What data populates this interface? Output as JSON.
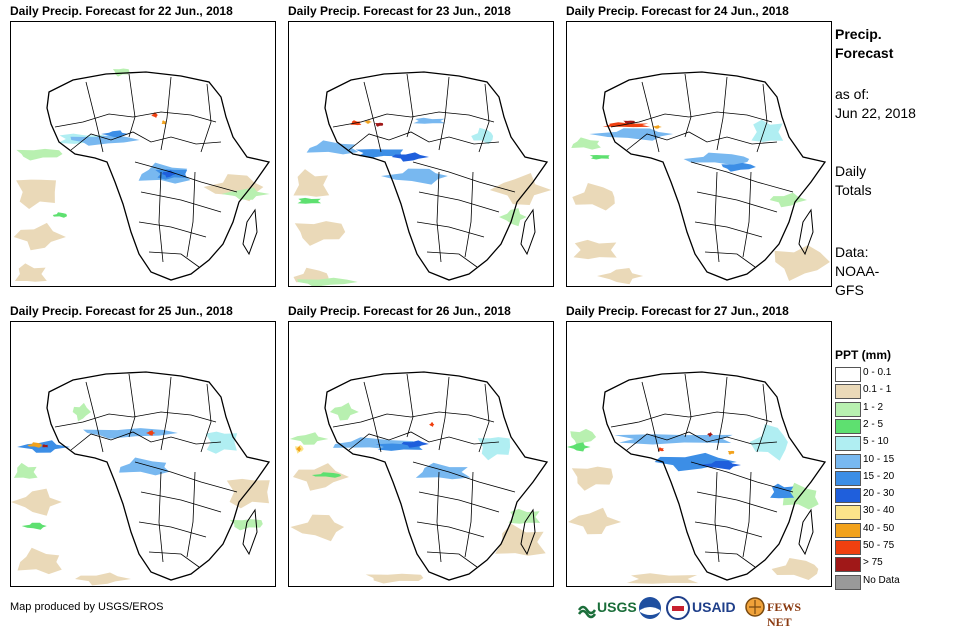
{
  "panels": [
    {
      "title": "Daily Precip. Forecast for 22 Jun., 2018"
    },
    {
      "title": "Daily Precip. Forecast for 23 Jun., 2018"
    },
    {
      "title": "Daily Precip. Forecast for 24 Jun., 2018"
    },
    {
      "title": "Daily Precip. Forecast for 25 Jun., 2018"
    },
    {
      "title": "Daily Precip. Forecast for 26 Jun., 2018"
    },
    {
      "title": "Daily Precip. Forecast for 27 Jun., 2018"
    }
  ],
  "sidebar": {
    "heading_line1": "Precip.",
    "heading_line2": "Forecast",
    "asof_label": "as of:",
    "asof_date": "Jun 22, 2018",
    "totals_line1": "Daily",
    "totals_line2": "Totals",
    "source_line1": "Data:",
    "source_line2": "NOAA-",
    "source_line3": "GFS"
  },
  "legend": {
    "title": "PPT (mm)",
    "items": [
      {
        "label": "0 - 0.1",
        "color": "#ffffff"
      },
      {
        "label": "0.1 - 1",
        "color": "#ead9b8"
      },
      {
        "label": "1 - 2",
        "color": "#b8f0b0"
      },
      {
        "label": "2 - 5",
        "color": "#5ee070"
      },
      {
        "label": "5 - 10",
        "color": "#b0eef2"
      },
      {
        "label": "10 - 15",
        "color": "#78b8f0"
      },
      {
        "label": "15 - 20",
        "color": "#3c8ee6"
      },
      {
        "label": "20 - 30",
        "color": "#1f5fdc"
      },
      {
        "label": "30 - 40",
        "color": "#fbe48a"
      },
      {
        "label": "40 - 50",
        "color": "#f2a21c"
      },
      {
        "label": "50 - 75",
        "color": "#f04010"
      },
      {
        "label": "> 75",
        "color": "#a01818"
      },
      {
        "label": "No Data",
        "color": "#999999"
      }
    ]
  },
  "footer": {
    "credit": "Map produced by USGS/EROS",
    "logos": {
      "usgs": "USGS",
      "usaid": "USAID",
      "fewsnet": "FEWS NET"
    }
  }
}
